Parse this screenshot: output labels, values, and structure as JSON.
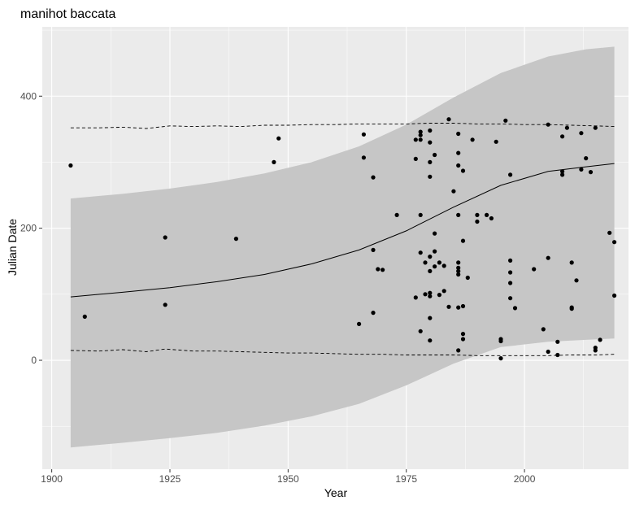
{
  "chart_data": {
    "type": "scatter",
    "title": "manihot baccata",
    "xlabel": "Year",
    "ylabel": "Julian Date",
    "xlim": [
      1898,
      2022
    ],
    "ylim": [
      -165,
      505
    ],
    "x_ticks": [
      1900,
      1925,
      1950,
      1975,
      2000
    ],
    "y_ticks": [
      0,
      200,
      400
    ],
    "x_tick_labels": [
      "1900",
      "1925",
      "1950",
      "1975",
      "2000"
    ],
    "y_tick_labels": [
      "0",
      "200",
      "400"
    ],
    "grid": true,
    "background": "#ebebeb",
    "points": [
      [
        1904,
        295
      ],
      [
        1907,
        66
      ],
      [
        1924,
        186
      ],
      [
        1924,
        84
      ],
      [
        1939,
        184
      ],
      [
        1947,
        300
      ],
      [
        1948,
        336
      ],
      [
        1965,
        55
      ],
      [
        1966,
        342
      ],
      [
        1966,
        307
      ],
      [
        1968,
        277
      ],
      [
        1968,
        167
      ],
      [
        1968,
        72
      ],
      [
        1969,
        138
      ],
      [
        1970,
        137
      ],
      [
        1973,
        220
      ],
      [
        1977,
        334
      ],
      [
        1977,
        305
      ],
      [
        1977,
        95
      ],
      [
        1978,
        346
      ],
      [
        1978,
        341
      ],
      [
        1978,
        334
      ],
      [
        1978,
        220
      ],
      [
        1978,
        163
      ],
      [
        1978,
        44
      ],
      [
        1979,
        148
      ],
      [
        1979,
        100
      ],
      [
        1980,
        348
      ],
      [
        1980,
        330
      ],
      [
        1980,
        300
      ],
      [
        1980,
        278
      ],
      [
        1980,
        157
      ],
      [
        1980,
        135
      ],
      [
        1980,
        102
      ],
      [
        1980,
        97
      ],
      [
        1980,
        64
      ],
      [
        1980,
        30
      ],
      [
        1981,
        311
      ],
      [
        1981,
        192
      ],
      [
        1981,
        165
      ],
      [
        1981,
        142
      ],
      [
        1982,
        148
      ],
      [
        1982,
        99
      ],
      [
        1983,
        143
      ],
      [
        1983,
        105
      ],
      [
        1984,
        365
      ],
      [
        1984,
        81
      ],
      [
        1985,
        256
      ],
      [
        1986,
        343
      ],
      [
        1986,
        314
      ],
      [
        1986,
        295
      ],
      [
        1986,
        220
      ],
      [
        1986,
        148
      ],
      [
        1986,
        140
      ],
      [
        1986,
        135
      ],
      [
        1986,
        130
      ],
      [
        1986,
        80
      ],
      [
        1986,
        15
      ],
      [
        1987,
        287
      ],
      [
        1987,
        181
      ],
      [
        1987,
        82
      ],
      [
        1987,
        40
      ],
      [
        1987,
        32
      ],
      [
        1988,
        125
      ],
      [
        1989,
        334
      ],
      [
        1990,
        220
      ],
      [
        1990,
        210
      ],
      [
        1992,
        220
      ],
      [
        1993,
        215
      ],
      [
        1994,
        331
      ],
      [
        1995,
        3
      ],
      [
        1995,
        29
      ],
      [
        1995,
        32
      ],
      [
        1996,
        363
      ],
      [
        1997,
        281
      ],
      [
        1997,
        151
      ],
      [
        1997,
        133
      ],
      [
        1997,
        117
      ],
      [
        1997,
        94
      ],
      [
        1998,
        79
      ],
      [
        2002,
        138
      ],
      [
        2004,
        47
      ],
      [
        2005,
        357
      ],
      [
        2005,
        155
      ],
      [
        2005,
        13
      ],
      [
        2007,
        28
      ],
      [
        2007,
        8
      ],
      [
        2008,
        339
      ],
      [
        2008,
        286
      ],
      [
        2008,
        281
      ],
      [
        2009,
        352
      ],
      [
        2010,
        148
      ],
      [
        2010,
        80
      ],
      [
        2010,
        78
      ],
      [
        2011,
        121
      ],
      [
        2012,
        344
      ],
      [
        2012,
        289
      ],
      [
        2013,
        306
      ],
      [
        2014,
        285
      ],
      [
        2015,
        352
      ],
      [
        2015,
        19
      ],
      [
        2015,
        15
      ],
      [
        2016,
        31
      ],
      [
        2018,
        193
      ],
      [
        2019,
        179
      ],
      [
        2019,
        98
      ]
    ],
    "fit_line": [
      [
        1904,
        96
      ],
      [
        1915,
        103
      ],
      [
        1925,
        110
      ],
      [
        1935,
        119
      ],
      [
        1945,
        130
      ],
      [
        1955,
        146
      ],
      [
        1965,
        167
      ],
      [
        1975,
        196
      ],
      [
        1985,
        232
      ],
      [
        1995,
        265
      ],
      [
        2005,
        286
      ],
      [
        2013,
        293
      ],
      [
        2019,
        298
      ]
    ],
    "band_upper": [
      [
        1904,
        245
      ],
      [
        1915,
        252
      ],
      [
        1925,
        260
      ],
      [
        1935,
        270
      ],
      [
        1945,
        283
      ],
      [
        1955,
        300
      ],
      [
        1965,
        324
      ],
      [
        1975,
        357
      ],
      [
        1985,
        398
      ],
      [
        1995,
        435
      ],
      [
        2005,
        460
      ],
      [
        2013,
        471
      ],
      [
        2019,
        475
      ]
    ],
    "band_lower": [
      [
        1904,
        -132
      ],
      [
        1915,
        -125
      ],
      [
        1925,
        -118
      ],
      [
        1935,
        -110
      ],
      [
        1945,
        -99
      ],
      [
        1955,
        -85
      ],
      [
        1965,
        -66
      ],
      [
        1975,
        -38
      ],
      [
        1985,
        -5
      ],
      [
        1995,
        20
      ],
      [
        2005,
        28
      ],
      [
        2013,
        31
      ],
      [
        2019,
        33
      ]
    ],
    "upper_dashed": [
      [
        1904,
        352
      ],
      [
        1910,
        352
      ],
      [
        1915,
        353
      ],
      [
        1920,
        351
      ],
      [
        1925,
        355
      ],
      [
        1930,
        354
      ],
      [
        1935,
        355
      ],
      [
        1940,
        354
      ],
      [
        1945,
        356
      ],
      [
        1950,
        356
      ],
      [
        1955,
        357
      ],
      [
        1960,
        357
      ],
      [
        1965,
        358
      ],
      [
        1970,
        358
      ],
      [
        1975,
        358
      ],
      [
        1980,
        359
      ],
      [
        1985,
        359
      ],
      [
        1990,
        358
      ],
      [
        1995,
        358
      ],
      [
        2000,
        357
      ],
      [
        2005,
        357
      ],
      [
        2010,
        356
      ],
      [
        2015,
        355
      ],
      [
        2019,
        354
      ]
    ],
    "lower_dashed": [
      [
        1904,
        15
      ],
      [
        1910,
        14
      ],
      [
        1915,
        16
      ],
      [
        1920,
        13
      ],
      [
        1924,
        17
      ],
      [
        1930,
        14
      ],
      [
        1935,
        14
      ],
      [
        1940,
        13
      ],
      [
        1945,
        12
      ],
      [
        1950,
        11
      ],
      [
        1955,
        11
      ],
      [
        1960,
        10
      ],
      [
        1965,
        9
      ],
      [
        1970,
        9
      ],
      [
        1975,
        8
      ],
      [
        1980,
        8
      ],
      [
        1985,
        8
      ],
      [
        1990,
        7
      ],
      [
        1995,
        7
      ],
      [
        2000,
        7
      ],
      [
        2005,
        7
      ],
      [
        2010,
        8
      ],
      [
        2015,
        8
      ],
      [
        2019,
        9
      ]
    ]
  }
}
